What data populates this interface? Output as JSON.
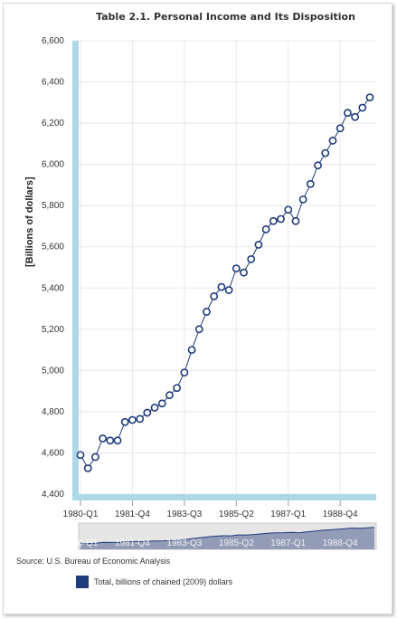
{
  "colors": {
    "series": "#1f3b7a",
    "marker_fill": "#ffffff",
    "axis_band": "#add8e6",
    "grid": "#e8e8e8",
    "navigator_fill": "#8a94b0",
    "navigator_bg": "#e6e6e6"
  },
  "source": "Source: U.S. Bureau of Economic Analysis",
  "chart_data": {
    "type": "line",
    "title": "Table 2.1. Personal Income and Its Disposition",
    "ylabel": "[Billions of dollars]",
    "xlabel": "",
    "ylim": [
      4400,
      6600
    ],
    "yticks": [
      "4,400",
      "4,600",
      "4,800",
      "5,000",
      "5,200",
      "5,400",
      "5,600",
      "5,800",
      "6,000",
      "6,200",
      "6,400",
      "6,600"
    ],
    "xticks": [
      {
        "label": "1980-Q1",
        "index": 0
      },
      {
        "label": "1981-Q4",
        "index": 7
      },
      {
        "label": "1983-Q3",
        "index": 14
      },
      {
        "label": "1985-Q2",
        "index": 21
      },
      {
        "label": "1987-Q1",
        "index": 28
      },
      {
        "label": "1988-Q4",
        "index": 35
      }
    ],
    "grid": true,
    "legend_position": "bottom",
    "series": [
      {
        "name": "Total, billions of chained (2009) dollars",
        "values": [
          4590,
          4525,
          4580,
          4670,
          4660,
          4660,
          4750,
          4760,
          4765,
          4795,
          4820,
          4840,
          4880,
          4915,
          4990,
          5100,
          5200,
          5285,
          5360,
          5405,
          5390,
          5495,
          5475,
          5540,
          5610,
          5685,
          5725,
          5735,
          5780,
          5725,
          5830,
          5905,
          5995,
          6055,
          6115,
          6175,
          6250,
          6230,
          6275,
          6325
        ]
      }
    ]
  }
}
